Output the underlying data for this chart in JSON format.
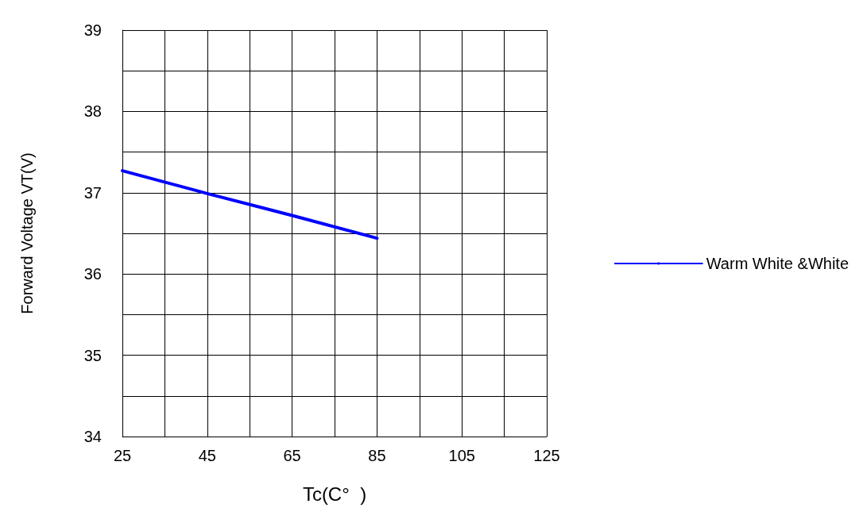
{
  "chart_data": {
    "type": "line",
    "xlabel": "Tc(C°  )",
    "ylabel": "Forward Voltage VT(V)",
    "x": [
      25,
      45,
      65,
      85
    ],
    "series": [
      {
        "name": "Warm White &White",
        "color": "#0000ff",
        "values": [
          37.27,
          36.99,
          36.72,
          36.44
        ]
      }
    ],
    "xlim": [
      25,
      125
    ],
    "xticks": [
      25,
      {
        "value": 35,
        "label": null
      },
      45,
      {
        "value": 55,
        "label": null
      },
      65,
      {
        "value": 75,
        "label": null
      },
      85,
      {
        "value": 95,
        "label": null
      },
      105,
      {
        "value": 115,
        "label": null
      },
      125
    ],
    "ylim": [
      34,
      39
    ],
    "yticks": [
      34,
      {
        "value": 34.5,
        "label": null
      },
      35,
      {
        "value": 35.5,
        "label": null
      },
      36,
      {
        "value": 36.5,
        "label": null
      },
      37,
      {
        "value": 37.5,
        "label": null
      },
      38,
      {
        "value": 38.5,
        "label": null
      },
      39
    ],
    "grid": true,
    "legend": "right",
    "marker": "none",
    "line_style": "solid"
  }
}
